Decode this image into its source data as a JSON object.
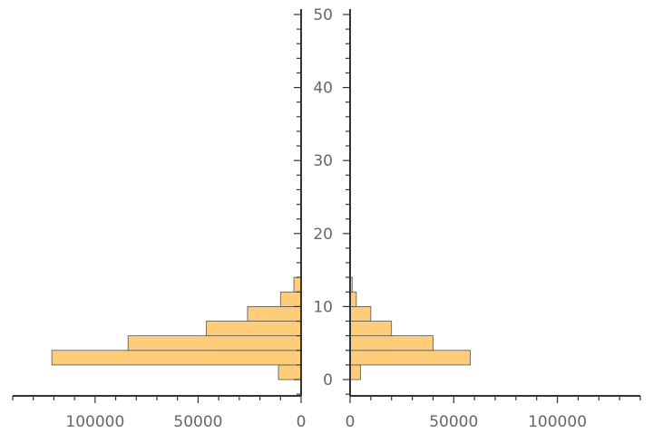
{
  "chart_data": {
    "type": "bar",
    "subtype": "paired-histogram",
    "orientation": "horizontal",
    "bar_color": "#FFCC7A",
    "bar_edge_color": "#555555",
    "bin_width": 2,
    "bins": [
      {
        "from": 0,
        "to": 2
      },
      {
        "from": 2,
        "to": 4
      },
      {
        "from": 4,
        "to": 6
      },
      {
        "from": 6,
        "to": 8
      },
      {
        "from": 8,
        "to": 10
      },
      {
        "from": 10,
        "to": 12
      },
      {
        "from": 12,
        "to": 14
      }
    ],
    "series": [
      {
        "side": "left",
        "values": [
          11000,
          121000,
          84000,
          46000,
          26000,
          10000,
          3500
        ]
      },
      {
        "side": "right",
        "values": [
          5000,
          58000,
          40000,
          20000,
          10000,
          3000,
          1000
        ]
      }
    ],
    "xlim": [
      0,
      140000
    ],
    "ylim": [
      -2,
      50
    ],
    "x_tick_labels": [
      "0",
      "50000",
      "100000"
    ],
    "y_tick_labels": [
      "0",
      "10",
      "20",
      "30",
      "40",
      "50"
    ],
    "title": "",
    "xlabel": "",
    "ylabel": "",
    "grid": false,
    "legend": "none"
  }
}
